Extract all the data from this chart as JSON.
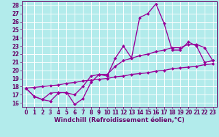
{
  "xlabel": "Windchill (Refroidissement éolien,°C)",
  "bg_color": "#b2ebeb",
  "line_color": "#990099",
  "grid_color": "#ffffff",
  "xlim": [
    -0.5,
    23.5
  ],
  "ylim": [
    15.5,
    28.5
  ],
  "xticks": [
    0,
    1,
    2,
    3,
    4,
    5,
    6,
    7,
    8,
    9,
    10,
    11,
    12,
    13,
    14,
    15,
    16,
    17,
    18,
    19,
    20,
    21,
    22,
    23
  ],
  "yticks": [
    16,
    17,
    18,
    19,
    20,
    21,
    22,
    23,
    24,
    25,
    26,
    27,
    28
  ],
  "line1_x": [
    0,
    1,
    2,
    3,
    4,
    5,
    6,
    7,
    8,
    9,
    10,
    11,
    12,
    13,
    14,
    15,
    16,
    17,
    18,
    19,
    20,
    21,
    22,
    23
  ],
  "line1_y": [
    17.8,
    16.8,
    16.4,
    16.2,
    17.2,
    17.3,
    15.8,
    16.5,
    18.5,
    19.5,
    19.3,
    21.5,
    23.0,
    21.5,
    26.5,
    27.0,
    28.2,
    25.8,
    22.5,
    22.5,
    23.5,
    23.0,
    21.0,
    21.2
  ],
  "line2_x": [
    0,
    1,
    2,
    3,
    4,
    5,
    6,
    7,
    8,
    9,
    10,
    11,
    12,
    13,
    14,
    15,
    16,
    17,
    18,
    19,
    20,
    21,
    22,
    23
  ],
  "line2_y": [
    17.8,
    16.8,
    16.4,
    17.2,
    17.3,
    17.2,
    17.0,
    18.0,
    19.3,
    19.5,
    19.5,
    20.5,
    21.2,
    21.5,
    21.8,
    22.0,
    22.3,
    22.5,
    22.8,
    22.8,
    23.2,
    23.2,
    22.8,
    21.2
  ],
  "line3_x": [
    0,
    1,
    2,
    3,
    4,
    5,
    6,
    7,
    8,
    9,
    10,
    11,
    12,
    13,
    14,
    15,
    16,
    17,
    18,
    19,
    20,
    21,
    22,
    23
  ],
  "line3_y": [
    17.8,
    17.9,
    18.0,
    18.1,
    18.2,
    18.4,
    18.5,
    18.7,
    18.8,
    18.9,
    19.0,
    19.2,
    19.3,
    19.5,
    19.6,
    19.7,
    19.9,
    20.0,
    20.2,
    20.3,
    20.4,
    20.5,
    20.7,
    20.8
  ],
  "marker": "D",
  "markersize": 2.5,
  "linewidth": 1.0,
  "font_color": "#660066",
  "xlabel_fontsize": 6.5,
  "tick_fontsize": 5.5
}
